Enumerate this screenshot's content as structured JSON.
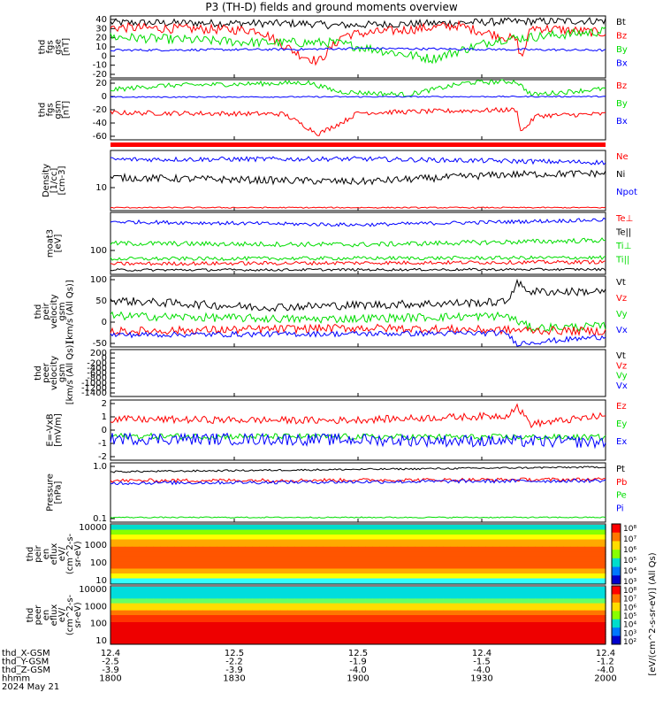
{
  "title": "P3 (TH-D) fields and ground moments overview",
  "date": "2024 May 21",
  "colors": {
    "black": "#000000",
    "red": "#ff0000",
    "green": "#00dd00",
    "blue": "#0000ff"
  },
  "panels": [
    {
      "id": "fgs-gse",
      "ylabel": [
        "thd",
        "fgs",
        "gse",
        "[nT]"
      ],
      "ticks": [
        "40",
        "30",
        "20",
        "10",
        "0",
        "-10",
        "-20"
      ],
      "ylim": [
        -25,
        40
      ],
      "legend": [
        {
          "t": "Bt",
          "c": "black"
        },
        {
          "t": "Bz",
          "c": "red"
        },
        {
          "t": "By",
          "c": "green"
        },
        {
          "t": "Bx",
          "c": "blue"
        }
      ]
    },
    {
      "id": "fgs-gsm",
      "ylabel": [
        "thd",
        "fgs",
        "gsm",
        "[nT]"
      ],
      "ticks": [
        "20",
        "0",
        "-20",
        "-40",
        "-60"
      ],
      "ylim": [
        -75,
        25
      ],
      "legend": [
        {
          "t": "Bz",
          "c": "red"
        },
        {
          "t": "By",
          "c": "green"
        },
        {
          "t": "Bx",
          "c": "blue"
        }
      ]
    },
    {
      "id": "density",
      "ylabel": [
        "Density",
        "[1/cc]",
        "[cm-3]"
      ],
      "ticks": [
        "10"
      ],
      "ylim": [
        0,
        1
      ],
      "legend": [
        {
          "t": "Ne",
          "c": "red"
        },
        {
          "t": "Ni",
          "c": "black"
        },
        {
          "t": "Npot",
          "c": "blue"
        }
      ]
    },
    {
      "id": "temp",
      "ylabel": [
        "moat3",
        "[eV]"
      ],
      "ticks": [
        "100"
      ],
      "ylim": [
        0,
        1
      ],
      "legend": [
        {
          "t": "Te⊥",
          "c": "red"
        },
        {
          "t": "Te||",
          "c": "black"
        },
        {
          "t": "Ti⊥",
          "c": "green"
        },
        {
          "t": "Ti||",
          "c": "green"
        }
      ]
    },
    {
      "id": "vel-ion",
      "ylabel": [
        "thd",
        "peir",
        "velocity",
        "gsm",
        "[km/s (All Qs)]"
      ],
      "ticks": [
        "100",
        "50",
        "0",
        "-50"
      ],
      "ylim": [
        -75,
        130
      ],
      "legend": [
        {
          "t": "Vt",
          "c": "black"
        },
        {
          "t": "Vz",
          "c": "red"
        },
        {
          "t": "Vy",
          "c": "green"
        },
        {
          "t": "Vx",
          "c": "blue"
        }
      ]
    },
    {
      "id": "vel-elec",
      "ylabel": [
        "thd",
        "peer",
        "velocity",
        "gsm",
        "[km/s (All Qs)]"
      ],
      "ticks": [
        "200",
        "0",
        "-200",
        "-400",
        "-600",
        "-800",
        "-1000",
        "-1200",
        "-1400"
      ],
      "ylim": [
        -1500,
        250
      ],
      "legend": [
        {
          "t": "Vt",
          "c": "black"
        },
        {
          "t": "Vz",
          "c": "red"
        },
        {
          "t": "Vy",
          "c": "green"
        },
        {
          "t": "Vx",
          "c": "blue"
        }
      ]
    },
    {
      "id": "efield",
      "ylabel": [
        "E=-VxB",
        "[mV/m]"
      ],
      "ticks": [
        "2",
        "1",
        "0",
        "-1",
        "-2"
      ],
      "ylim": [
        -2.5,
        2.5
      ],
      "legend": [
        {
          "t": "Ez",
          "c": "red"
        },
        {
          "t": "Ey",
          "c": "green"
        },
        {
          "t": "Ex",
          "c": "blue"
        }
      ]
    },
    {
      "id": "pressure",
      "ylabel": [
        "Pressure",
        "[nPa]"
      ],
      "ticks": [
        "1.0",
        "0.1"
      ],
      "ylim": [
        0,
        1
      ],
      "legend": [
        {
          "t": "Pt",
          "c": "black"
        },
        {
          "t": "Pb",
          "c": "red"
        },
        {
          "t": "Pe",
          "c": "green"
        },
        {
          "t": "Pi",
          "c": "blue"
        }
      ]
    },
    {
      "id": "ion-spec",
      "ylabel": [
        "thd",
        "peir",
        "en",
        "eflux",
        "eV/",
        "(cm^2-s-",
        "sr-eV)"
      ],
      "ticks": [
        "10000",
        "1000",
        "100",
        "10"
      ],
      "ylim": [
        8,
        15000
      ],
      "legend": []
    },
    {
      "id": "elec-spec",
      "ylabel": [
        "thd",
        "peer",
        "en",
        "eflux",
        "eV/",
        "(cm^2-s-",
        "sr-eV)"
      ],
      "ticks": [
        "10000",
        "1000",
        "100",
        "10"
      ],
      "ylim": [
        8,
        15000
      ],
      "legend": []
    }
  ],
  "colorbar": {
    "label": "[eV/(cm^2-s-sr-eV)] (All Qs)",
    "upper": [
      "10⁸",
      "10⁷",
      "10⁶",
      "10⁵",
      "10⁴",
      "10³"
    ],
    "lower": [
      "10⁸",
      "10⁷",
      "10⁶",
      "10⁵",
      "10⁴",
      "10³",
      "10²"
    ]
  },
  "x_axis": {
    "row_labels": [
      "thd_X-GSM",
      "thd_Y-GSM",
      "thd_Z-GSM",
      "hhmm"
    ],
    "columns": [
      {
        "x": "12.4",
        "y": "-2.5",
        "z": "-3.9",
        "t": "1800"
      },
      {
        "x": "12.5",
        "y": "-2.2",
        "z": "-3.9",
        "t": "1830"
      },
      {
        "x": "12.5",
        "y": "-1.9",
        "z": "-4.0",
        "t": "1900"
      },
      {
        "x": "12.4",
        "y": "-1.5",
        "z": "-4.0",
        "t": "1930"
      },
      {
        "x": "12.4",
        "y": "-1.2",
        "z": "-4.0",
        "t": "2000"
      }
    ]
  },
  "chart_data": [
    {
      "type": "line",
      "title": "thd fgs gse [nT]",
      "x": [
        "1800",
        "1830",
        "1900",
        "1930",
        "2000"
      ],
      "ylim": [
        -25,
        40
      ],
      "series": [
        {
          "name": "Bt",
          "values": [
            33,
            34,
            32,
            34,
            35
          ]
        },
        {
          "name": "Bz",
          "values": [
            28,
            22,
            -5,
            28,
            22
          ]
        },
        {
          "name": "By",
          "values": [
            18,
            14,
            12,
            8,
            22
          ]
        },
        {
          "name": "Bx",
          "values": [
            3,
            3,
            6,
            4,
            4
          ]
        }
      ]
    },
    {
      "type": "line",
      "title": "thd fgs gsm [nT]",
      "x": [
        "1800",
        "1830",
        "1900",
        "1930",
        "2000"
      ],
      "ylim": [
        -75,
        25
      ],
      "series": [
        {
          "name": "Bz",
          "values": [
            -28,
            -28,
            -60,
            -30,
            -32
          ]
        },
        {
          "name": "By",
          "values": [
            12,
            18,
            5,
            18,
            10
          ]
        },
        {
          "name": "Bx",
          "values": [
            -3,
            -3,
            -3,
            -3,
            -3
          ]
        }
      ]
    },
    {
      "type": "line",
      "title": "Density [1/cc]",
      "x": [
        "1800",
        "1830",
        "1900",
        "1930",
        "2000"
      ],
      "series": [
        {
          "name": "Ne",
          "values": [
            6,
            6,
            6,
            6,
            6
          ]
        },
        {
          "name": "Ni",
          "values": [
            18,
            18,
            16,
            19,
            22
          ]
        },
        {
          "name": "Npot",
          "values": [
            30,
            31,
            30,
            30,
            29
          ]
        }
      ]
    },
    {
      "type": "line",
      "title": "moat3 [eV]",
      "x": [
        "1800",
        "1830",
        "1900",
        "1930",
        "2000"
      ],
      "series": [
        {
          "name": "Te⊥",
          "values": [
            80,
            80,
            82,
            78,
            80
          ]
        },
        {
          "name": "Te||",
          "values": [
            60,
            62,
            60,
            60,
            62
          ]
        },
        {
          "name": "Ti⊥",
          "values": [
            250,
            260,
            260,
            240,
            300
          ]
        },
        {
          "name": "Ti||",
          "values": [
            130,
            140,
            140,
            130,
            150
          ]
        }
      ]
    },
    {
      "type": "line",
      "title": "thd peir velocity gsm [km/s (All Qs)]",
      "x": [
        "1800",
        "1830",
        "1900",
        "1930",
        "2000"
      ],
      "ylim": [
        -75,
        130
      ],
      "series": [
        {
          "name": "Vt",
          "values": [
            55,
            40,
            45,
            55,
            85
          ]
        },
        {
          "name": "Vz",
          "values": [
            -30,
            -25,
            -20,
            -30,
            -30
          ]
        },
        {
          "name": "Vy",
          "values": [
            15,
            0,
            10,
            15,
            -20
          ]
        },
        {
          "name": "Vx",
          "values": [
            -40,
            -30,
            -30,
            -35,
            -50
          ]
        }
      ]
    },
    {
      "type": "line",
      "title": "E=-VxB [mV/m]",
      "x": [
        "1800",
        "1830",
        "1900",
        "1930",
        "2000"
      ],
      "ylim": [
        -2.5,
        2.5
      ],
      "series": [
        {
          "name": "Ez",
          "values": [
            0.8,
            1.0,
            0.8,
            1.0,
            1.2
          ]
        },
        {
          "name": "Ey",
          "values": [
            -0.5,
            -0.7,
            -0.5,
            -0.5,
            -0.6
          ]
        },
        {
          "name": "Ex",
          "values": [
            -0.7,
            -0.6,
            -0.8,
            -0.5,
            -1.0
          ]
        }
      ]
    },
    {
      "type": "line",
      "title": "Pressure [nPa]",
      "x": [
        "1800",
        "1830",
        "1900",
        "1930",
        "2000"
      ],
      "series": [
        {
          "name": "Pt",
          "values": [
            0.9,
            0.9,
            0.95,
            1.0,
            1.0
          ]
        },
        {
          "name": "Pb",
          "values": [
            0.5,
            0.5,
            0.5,
            0.5,
            0.55
          ]
        },
        {
          "name": "Pe",
          "values": [
            0.05,
            0.05,
            0.05,
            0.05,
            0.05
          ]
        },
        {
          "name": "Pi",
          "values": [
            0.45,
            0.45,
            0.45,
            0.5,
            0.5
          ]
        }
      ]
    },
    {
      "type": "heatmap",
      "title": "thd peir en eflux",
      "ylim": [
        8,
        15000
      ]
    },
    {
      "type": "heatmap",
      "title": "thd peer en eflux",
      "ylim": [
        8,
        15000
      ]
    }
  ]
}
